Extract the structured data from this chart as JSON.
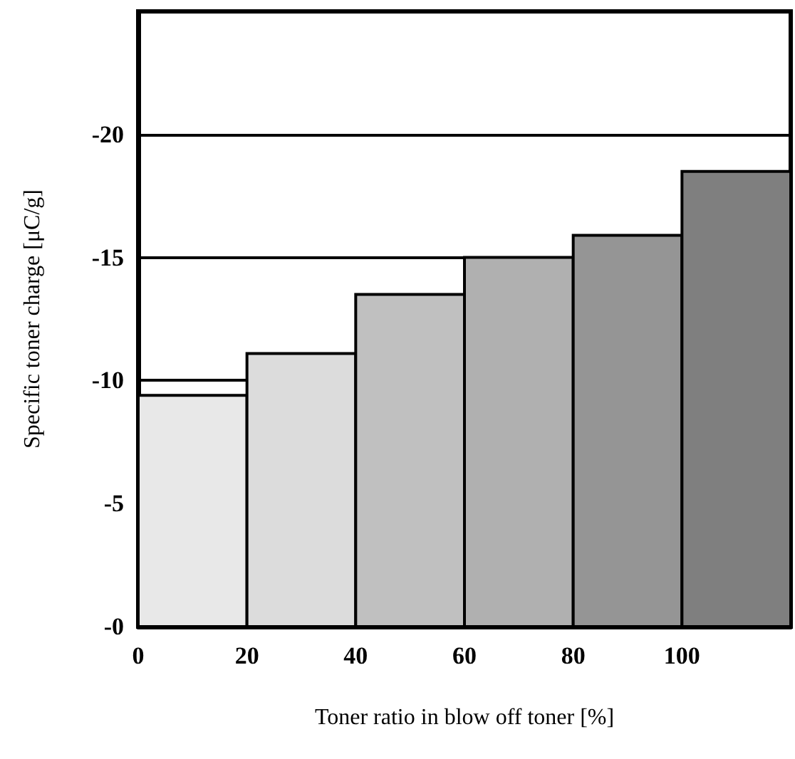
{
  "chart_data": {
    "type": "histogram",
    "xlabel": "Toner ratio in blow off toner [%]",
    "ylabel": "Specific toner charge [μC/g]",
    "bins": [
      0,
      20,
      40,
      60,
      80,
      100,
      120
    ],
    "values": [
      -9.4,
      -11.1,
      -13.5,
      -15.0,
      -15.9,
      -18.5
    ],
    "colors": [
      "#e8e8e8",
      "#dcdcdc",
      "#c0c0c0",
      "#b0b0b0",
      "#959595",
      "#7f7f7f"
    ],
    "xlim": [
      0,
      120
    ],
    "xticks": [
      0,
      20,
      40,
      60,
      80,
      100
    ],
    "ylim": [
      0,
      -25
    ],
    "yticks": [
      {
        "value": 0,
        "label": "-0"
      },
      -5,
      -10,
      -15,
      -20
    ],
    "grid": "y"
  }
}
